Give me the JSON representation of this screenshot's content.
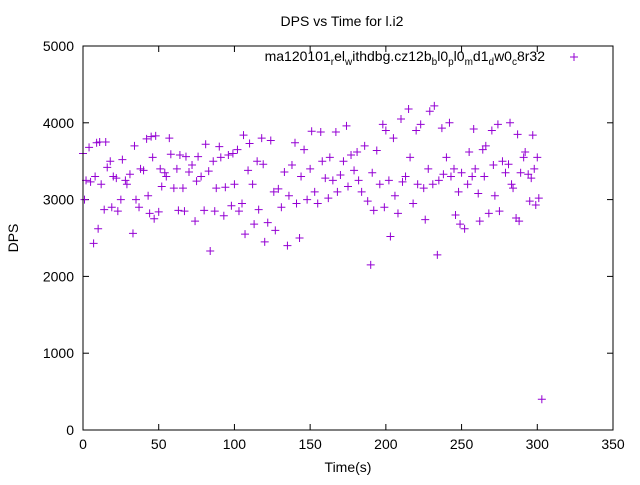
{
  "chart_data": {
    "type": "scatter",
    "title": "DPS vs Time for l.i2",
    "xlabel": "Time(s)",
    "ylabel": "DPS",
    "xlim": [
      0,
      350
    ],
    "ylim": [
      0,
      5000
    ],
    "xticks": [
      "0",
      "50",
      "100",
      "150",
      "200",
      "250",
      "300",
      "350"
    ],
    "yticks": [
      "0",
      "1000",
      "2000",
      "3000",
      "4000",
      "5000"
    ],
    "grid": false,
    "legend_position": "top-right",
    "series": [
      {
        "name": "ma120101_rel_withdbg.cz12b_bl0_pl0_md1_dw0_c8r32",
        "color": "#9400d3",
        "marker": "plus",
        "points": [
          [
            0,
            3600
          ],
          [
            1,
            3000
          ],
          [
            2,
            3250
          ],
          [
            4,
            3680
          ],
          [
            5,
            3230
          ],
          [
            7,
            2430
          ],
          [
            8,
            3300
          ],
          [
            9,
            3740
          ],
          [
            10,
            2620
          ],
          [
            11,
            3750
          ],
          [
            12,
            3200
          ],
          [
            14,
            2870
          ],
          [
            15,
            3750
          ],
          [
            16,
            3420
          ],
          [
            18,
            3500
          ],
          [
            19,
            2900
          ],
          [
            20,
            3300
          ],
          [
            22,
            3280
          ],
          [
            23,
            2850
          ],
          [
            25,
            3000
          ],
          [
            26,
            3520
          ],
          [
            28,
            3250
          ],
          [
            29,
            3200
          ],
          [
            31,
            3330
          ],
          [
            33,
            2560
          ],
          [
            34,
            3700
          ],
          [
            35,
            3000
          ],
          [
            37,
            2900
          ],
          [
            38,
            3400
          ],
          [
            40,
            3380
          ],
          [
            42,
            3790
          ],
          [
            43,
            3050
          ],
          [
            44,
            2820
          ],
          [
            45,
            3820
          ],
          [
            46,
            3550
          ],
          [
            47,
            2750
          ],
          [
            48,
            3830
          ],
          [
            50,
            2840
          ],
          [
            51,
            3400
          ],
          [
            52,
            3170
          ],
          [
            54,
            3350
          ],
          [
            55,
            3300
          ],
          [
            57,
            3800
          ],
          [
            58,
            3590
          ],
          [
            60,
            3150
          ],
          [
            62,
            3400
          ],
          [
            63,
            2860
          ],
          [
            64,
            3580
          ],
          [
            66,
            3150
          ],
          [
            67,
            2850
          ],
          [
            68,
            3560
          ],
          [
            70,
            3360
          ],
          [
            72,
            3450
          ],
          [
            74,
            2720
          ],
          [
            75,
            3240
          ],
          [
            76,
            3560
          ],
          [
            78,
            3300
          ],
          [
            80,
            2860
          ],
          [
            81,
            3720
          ],
          [
            83,
            3370
          ],
          [
            84,
            2330
          ],
          [
            86,
            3500
          ],
          [
            87,
            2850
          ],
          [
            88,
            3150
          ],
          [
            90,
            3690
          ],
          [
            91,
            3550
          ],
          [
            93,
            2790
          ],
          [
            94,
            3160
          ],
          [
            96,
            3580
          ],
          [
            98,
            2920
          ],
          [
            99,
            3600
          ],
          [
            100,
            3200
          ],
          [
            102,
            3650
          ],
          [
            103,
            2850
          ],
          [
            105,
            2950
          ],
          [
            106,
            3840
          ],
          [
            107,
            2550
          ],
          [
            109,
            3380
          ],
          [
            110,
            3730
          ],
          [
            112,
            3200
          ],
          [
            113,
            2680
          ],
          [
            115,
            3500
          ],
          [
            116,
            2870
          ],
          [
            118,
            3800
          ],
          [
            119,
            3460
          ],
          [
            120,
            2450
          ],
          [
            122,
            2700
          ],
          [
            124,
            3770
          ],
          [
            126,
            3100
          ],
          [
            127,
            2600
          ],
          [
            129,
            3140
          ],
          [
            131,
            2900
          ],
          [
            133,
            3360
          ],
          [
            135,
            2400
          ],
          [
            136,
            3050
          ],
          [
            138,
            3450
          ],
          [
            140,
            3740
          ],
          [
            141,
            2950
          ],
          [
            143,
            2500
          ],
          [
            144,
            3300
          ],
          [
            146,
            3650
          ],
          [
            148,
            3000
          ],
          [
            150,
            3400
          ],
          [
            151,
            3890
          ],
          [
            153,
            3100
          ],
          [
            155,
            2950
          ],
          [
            157,
            3880
          ],
          [
            158,
            3500
          ],
          [
            160,
            3280
          ],
          [
            162,
            3020
          ],
          [
            163,
            3550
          ],
          [
            165,
            3250
          ],
          [
            167,
            3880
          ],
          [
            168,
            3100
          ],
          [
            170,
            3320
          ],
          [
            172,
            3500
          ],
          [
            174,
            3960
          ],
          [
            175,
            3170
          ],
          [
            177,
            3580
          ],
          [
            179,
            3380
          ],
          [
            181,
            3620
          ],
          [
            182,
            3250
          ],
          [
            184,
            3100
          ],
          [
            186,
            3700
          ],
          [
            188,
            2980
          ],
          [
            190,
            2150
          ],
          [
            191,
            3350
          ],
          [
            192,
            2860
          ],
          [
            194,
            3640
          ],
          [
            196,
            3200
          ],
          [
            198,
            3980
          ],
          [
            199,
            2900
          ],
          [
            200,
            3900
          ],
          [
            202,
            3250
          ],
          [
            203,
            2520
          ],
          [
            205,
            3800
          ],
          [
            206,
            3050
          ],
          [
            208,
            2820
          ],
          [
            210,
            4050
          ],
          [
            211,
            3230
          ],
          [
            213,
            3300
          ],
          [
            215,
            4180
          ],
          [
            216,
            3550
          ],
          [
            218,
            2950
          ],
          [
            220,
            3900
          ],
          [
            221,
            3200
          ],
          [
            223,
            3980
          ],
          [
            225,
            3150
          ],
          [
            226,
            2740
          ],
          [
            228,
            3400
          ],
          [
            229,
            4150
          ],
          [
            231,
            3200
          ],
          [
            232,
            4220
          ],
          [
            234,
            2280
          ],
          [
            235,
            3250
          ],
          [
            237,
            3930
          ],
          [
            238,
            3330
          ],
          [
            240,
            3550
          ],
          [
            242,
            4000
          ],
          [
            243,
            3300
          ],
          [
            245,
            3400
          ],
          [
            246,
            2800
          ],
          [
            248,
            3100
          ],
          [
            249,
            2680
          ],
          [
            250,
            3350
          ],
          [
            252,
            2620
          ],
          [
            254,
            3200
          ],
          [
            255,
            3620
          ],
          [
            257,
            3300
          ],
          [
            258,
            3920
          ],
          [
            259,
            3400
          ],
          [
            261,
            3080
          ],
          [
            262,
            2720
          ],
          [
            264,
            3650
          ],
          [
            265,
            3300
          ],
          [
            266,
            3700
          ],
          [
            268,
            2820
          ],
          [
            270,
            3900
          ],
          [
            271,
            3450
          ],
          [
            272,
            3050
          ],
          [
            274,
            3980
          ],
          [
            275,
            2850
          ],
          [
            277,
            3500
          ],
          [
            279,
            3350
          ],
          [
            281,
            3460
          ],
          [
            282,
            4000
          ],
          [
            283,
            3200
          ],
          [
            284,
            3150
          ],
          [
            286,
            2760
          ],
          [
            287,
            3850
          ],
          [
            288,
            2720
          ],
          [
            289,
            3350
          ],
          [
            291,
            3550
          ],
          [
            292,
            3620
          ],
          [
            294,
            3330
          ],
          [
            295,
            2980
          ],
          [
            296,
            3280
          ],
          [
            297,
            3840
          ],
          [
            298,
            3400
          ],
          [
            299,
            2930
          ],
          [
            300,
            3550
          ],
          [
            301,
            3020
          ],
          [
            303,
            400
          ]
        ]
      }
    ]
  }
}
